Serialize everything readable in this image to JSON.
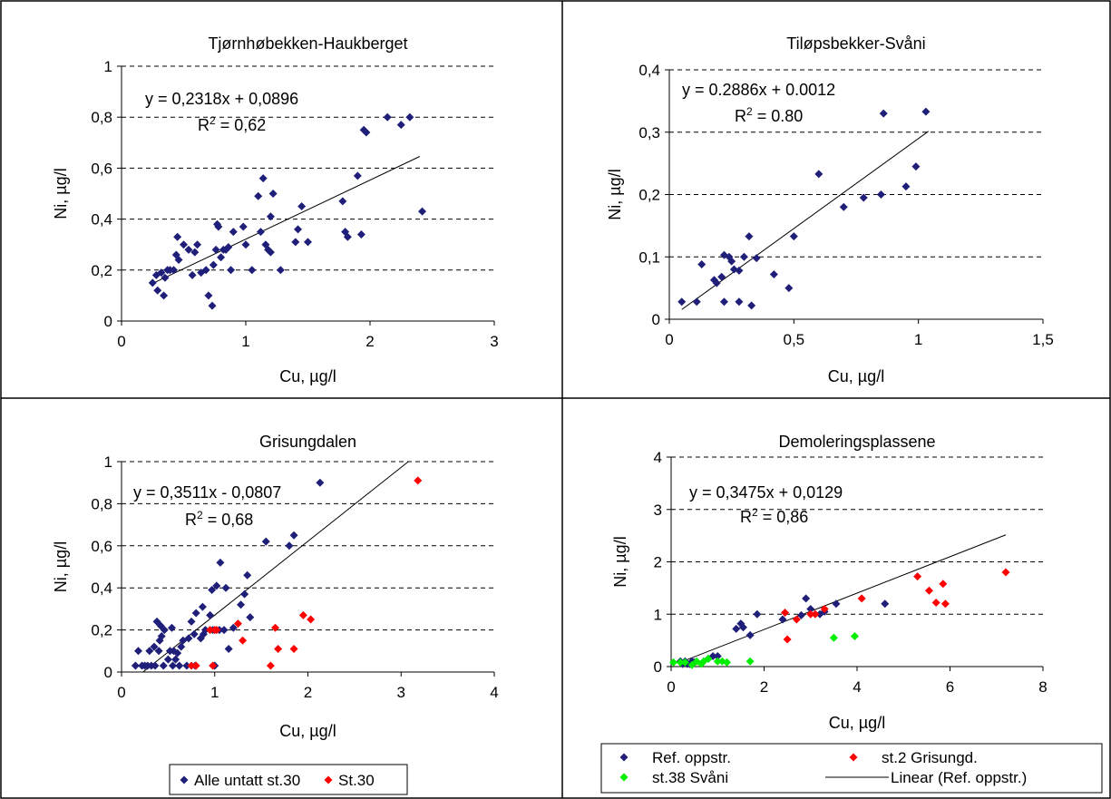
{
  "chart_data": [
    {
      "type": "scatter",
      "title": "Tjørnhøbekken-Haukberget",
      "xlabel": "Cu, µg/l",
      "ylabel": "Ni, µg/l",
      "xlim": [
        0,
        3
      ],
      "ylim": [
        0,
        1
      ],
      "xticks": [
        0,
        1,
        2,
        3
      ],
      "xtick_labels": [
        "0",
        "1",
        "2",
        "3"
      ],
      "yticks": [
        0,
        0.2,
        0.4,
        0.6,
        0.8,
        1
      ],
      "ytick_labels": [
        "0",
        "0,2",
        "0,4",
        "0,6",
        "0,8",
        "1"
      ],
      "grid": "horizontal dashed",
      "equation": "y = 0,2318x + 0,0896",
      "r2": "R2 = 0,62",
      "r2_prefix": "R",
      "r2_sup": "2",
      "r2_value": " = 0,62",
      "trendline": {
        "slope": 0.2318,
        "intercept": 0.0896,
        "x_range": [
          0.24,
          2.4
        ]
      },
      "series": [
        {
          "color": "#1f1f7a",
          "points": [
            [
              0.25,
              0.15
            ],
            [
              0.28,
              0.18
            ],
            [
              0.29,
              0.12
            ],
            [
              0.32,
              0.19
            ],
            [
              0.34,
              0.1
            ],
            [
              0.35,
              0.17
            ],
            [
              0.37,
              0.2
            ],
            [
              0.39,
              0.2
            ],
            [
              0.42,
              0.2
            ],
            [
              0.44,
              0.26
            ],
            [
              0.45,
              0.33
            ],
            [
              0.46,
              0.24
            ],
            [
              0.5,
              0.3
            ],
            [
              0.54,
              0.28
            ],
            [
              0.57,
              0.18
            ],
            [
              0.59,
              0.27
            ],
            [
              0.61,
              0.3
            ],
            [
              0.64,
              0.19
            ],
            [
              0.68,
              0.2
            ],
            [
              0.7,
              0.1
            ],
            [
              0.73,
              0.06
            ],
            [
              0.74,
              0.22
            ],
            [
              0.76,
              0.28
            ],
            [
              0.77,
              0.38
            ],
            [
              0.78,
              0.37
            ],
            [
              0.8,
              0.25
            ],
            [
              0.82,
              0.28
            ],
            [
              0.84,
              0.28
            ],
            [
              0.86,
              0.29
            ],
            [
              0.88,
              0.2
            ],
            [
              0.9,
              0.35
            ],
            [
              0.98,
              0.37
            ],
            [
              1.0,
              0.3
            ],
            [
              1.05,
              0.2
            ],
            [
              1.1,
              0.49
            ],
            [
              1.12,
              0.35
            ],
            [
              1.14,
              0.56
            ],
            [
              1.16,
              0.3
            ],
            [
              1.18,
              0.28
            ],
            [
              1.2,
              0.27
            ],
            [
              1.22,
              0.5
            ],
            [
              1.2,
              0.41
            ],
            [
              1.28,
              0.2
            ],
            [
              1.4,
              0.31
            ],
            [
              1.42,
              0.36
            ],
            [
              1.45,
              0.45
            ],
            [
              1.5,
              0.31
            ],
            [
              1.78,
              0.47
            ],
            [
              1.8,
              0.35
            ],
            [
              1.82,
              0.33
            ],
            [
              1.9,
              0.57
            ],
            [
              1.93,
              0.34
            ],
            [
              1.95,
              0.75
            ],
            [
              1.97,
              0.74
            ],
            [
              2.14,
              0.8
            ],
            [
              2.25,
              0.77
            ],
            [
              2.32,
              0.8
            ],
            [
              2.42,
              0.43
            ]
          ]
        }
      ],
      "legend": []
    },
    {
      "type": "scatter",
      "title": "Tiløpsbekker-Svåni",
      "xlabel": "Cu, µg/l",
      "ylabel": "Ni, µg/l",
      "xlim": [
        0,
        1.5
      ],
      "ylim": [
        0,
        0.4
      ],
      "xticks": [
        0,
        0.5,
        1,
        1.5
      ],
      "xtick_labels": [
        "0",
        "0,5",
        "1",
        "1,5"
      ],
      "yticks": [
        0,
        0.1,
        0.2,
        0.3,
        0.4
      ],
      "ytick_labels": [
        "0",
        "0,1",
        "0,2",
        "0,3",
        "0,4"
      ],
      "grid": "horizontal dashed",
      "equation": "y = 0.2886x + 0.0012",
      "r2": "R2 = 0.80",
      "r2_prefix": "R",
      "r2_sup": "2",
      "r2_value": " = 0.80",
      "trendline": {
        "slope": 0.2886,
        "intercept": 0.0012,
        "x_range": [
          0.05,
          1.04
        ]
      },
      "series": [
        {
          "color": "#1f1f7a",
          "points": [
            [
              0.05,
              0.028
            ],
            [
              0.11,
              0.028
            ],
            [
              0.13,
              0.088
            ],
            [
              0.18,
              0.063
            ],
            [
              0.19,
              0.058
            ],
            [
              0.21,
              0.068
            ],
            [
              0.22,
              0.103
            ],
            [
              0.22,
              0.028
            ],
            [
              0.24,
              0.1
            ],
            [
              0.25,
              0.093
            ],
            [
              0.26,
              0.08
            ],
            [
              0.28,
              0.078
            ],
            [
              0.28,
              0.028
            ],
            [
              0.3,
              0.1
            ],
            [
              0.32,
              0.133
            ],
            [
              0.33,
              0.022
            ],
            [
              0.35,
              0.098
            ],
            [
              0.42,
              0.072
            ],
            [
              0.48,
              0.05
            ],
            [
              0.5,
              0.133
            ],
            [
              0.6,
              0.233
            ],
            [
              0.7,
              0.18
            ],
            [
              0.78,
              0.195
            ],
            [
              0.85,
              0.2
            ],
            [
              0.86,
              0.33
            ],
            [
              0.95,
              0.213
            ],
            [
              0.99,
              0.245
            ],
            [
              1.03,
              0.333
            ]
          ]
        }
      ],
      "legend": []
    },
    {
      "type": "scatter",
      "title": "Grisungdalen",
      "xlabel": "Cu, µg/l",
      "ylabel": "Ni, µg/l",
      "xlim": [
        0,
        4
      ],
      "ylim": [
        0,
        1
      ],
      "xticks": [
        0,
        1,
        2,
        3,
        4
      ],
      "xtick_labels": [
        "0",
        "1",
        "2",
        "3",
        "4"
      ],
      "yticks": [
        0,
        0.2,
        0.4,
        0.6,
        0.8,
        1
      ],
      "ytick_labels": [
        "0",
        "0,2",
        "0,4",
        "0,6",
        "0,8",
        "1"
      ],
      "grid": "horizontal dashed",
      "equation": "y = 0,3511x - 0,0807",
      "r2": "R2 = 0,68",
      "r2_prefix": "R",
      "r2_sup": "2",
      "r2_value": " = 0,68",
      "trendline": {
        "slope": 0.3511,
        "intercept": -0.0807,
        "x_range": [
          0.23,
          3.08
        ]
      },
      "series": [
        {
          "name": "Alle untatt st.30",
          "color": "#1f1f7a",
          "points": [
            [
              0.15,
              0.03
            ],
            [
              0.18,
              0.1
            ],
            [
              0.22,
              0.03
            ],
            [
              0.25,
              0.03
            ],
            [
              0.28,
              0.03
            ],
            [
              0.3,
              0.1
            ],
            [
              0.32,
              0.03
            ],
            [
              0.35,
              0.12
            ],
            [
              0.36,
              0.03
            ],
            [
              0.38,
              0.24
            ],
            [
              0.4,
              0.1
            ],
            [
              0.41,
              0.15
            ],
            [
              0.42,
              0.22
            ],
            [
              0.43,
              0.17
            ],
            [
              0.45,
              0.03
            ],
            [
              0.46,
              0.2
            ],
            [
              0.5,
              0.06
            ],
            [
              0.52,
              0.1
            ],
            [
              0.54,
              0.21
            ],
            [
              0.55,
              0.03
            ],
            [
              0.56,
              0.1
            ],
            [
              0.58,
              0.06
            ],
            [
              0.6,
              0.09
            ],
            [
              0.62,
              0.03
            ],
            [
              0.64,
              0.12
            ],
            [
              0.66,
              0.15
            ],
            [
              0.7,
              0.03
            ],
            [
              0.72,
              0.16
            ],
            [
              0.75,
              0.24
            ],
            [
              0.78,
              0.18
            ],
            [
              0.79,
              0.03
            ],
            [
              0.8,
              0.28
            ],
            [
              0.85,
              0.16
            ],
            [
              0.87,
              0.31
            ],
            [
              0.88,
              0.18
            ],
            [
              0.9,
              0.2
            ],
            [
              0.95,
              0.27
            ],
            [
              0.97,
              0.39
            ],
            [
              0.98,
              0.2
            ],
            [
              1.0,
              0.03
            ],
            [
              1.02,
              0.41
            ],
            [
              1.05,
              0.2
            ],
            [
              1.06,
              0.52
            ],
            [
              1.1,
              0.2
            ],
            [
              1.12,
              0.4
            ],
            [
              1.15,
              0.11
            ],
            [
              1.2,
              0.21
            ],
            [
              1.28,
              0.32
            ],
            [
              1.32,
              0.37
            ],
            [
              1.35,
              0.46
            ],
            [
              1.38,
              0.26
            ],
            [
              1.55,
              0.62
            ],
            [
              1.8,
              0.6
            ],
            [
              1.85,
              0.65
            ],
            [
              2.13,
              0.9
            ]
          ]
        },
        {
          "name": "St.30",
          "color": "#ff0000",
          "points": [
            [
              0.75,
              0.03
            ],
            [
              0.8,
              0.03
            ],
            [
              0.95,
              0.2
            ],
            [
              0.98,
              0.03
            ],
            [
              1.0,
              0.2
            ],
            [
              1.02,
              0.2
            ],
            [
              1.25,
              0.23
            ],
            [
              1.3,
              0.15
            ],
            [
              1.6,
              0.03
            ],
            [
              1.65,
              0.21
            ],
            [
              1.68,
              0.11
            ],
            [
              1.85,
              0.11
            ],
            [
              1.95,
              0.27
            ],
            [
              2.03,
              0.25
            ],
            [
              3.18,
              0.91
            ]
          ]
        }
      ],
      "legend": [
        "Alle untatt st.30",
        "St.30"
      ]
    },
    {
      "type": "scatter",
      "title": "Demoleringsplassene",
      "xlabel": "Cu, µg/l",
      "ylabel": "Ni, µg/l",
      "xlim": [
        0,
        8
      ],
      "ylim": [
        0,
        4
      ],
      "xticks": [
        0,
        2,
        4,
        6,
        8
      ],
      "xtick_labels": [
        "0",
        "2",
        "4",
        "6",
        "8"
      ],
      "yticks": [
        0,
        1,
        2,
        3,
        4
      ],
      "ytick_labels": [
        "0",
        "1",
        "2",
        "3",
        "4"
      ],
      "grid": "horizontal dashed",
      "equation": "y = 0,3475x + 0,0129",
      "r2": "R2 = 0,86",
      "r2_prefix": "R",
      "r2_sup": "2",
      "r2_value": " = 0,86",
      "trendline": {
        "slope": 0.3475,
        "intercept": 0.0129,
        "x_range": [
          0.2,
          7.2
        ]
      },
      "series": [
        {
          "name": "Ref. oppstr.",
          "color": "#1f1f7a",
          "points": [
            [
              0.2,
              0.1
            ],
            [
              0.25,
              0.05
            ],
            [
              0.3,
              0.1
            ],
            [
              0.35,
              0.05
            ],
            [
              0.4,
              0.05
            ],
            [
              0.45,
              0.1
            ],
            [
              0.5,
              0.08
            ],
            [
              0.8,
              0.15
            ],
            [
              0.9,
              0.2
            ],
            [
              1.0,
              0.2
            ],
            [
              1.4,
              0.72
            ],
            [
              1.5,
              0.82
            ],
            [
              1.55,
              0.75
            ],
            [
              1.7,
              0.6
            ],
            [
              1.85,
              1.0
            ],
            [
              2.4,
              0.9
            ],
            [
              2.8,
              0.98
            ],
            [
              2.9,
              1.3
            ],
            [
              3.0,
              1.1
            ],
            [
              3.2,
              1.0
            ],
            [
              3.3,
              1.05
            ],
            [
              3.55,
              1.2
            ],
            [
              4.6,
              1.2
            ]
          ]
        },
        {
          "name": "st.2 Grisungd.",
          "color": "#ff0000",
          "points": [
            [
              2.45,
              1.03
            ],
            [
              2.5,
              0.52
            ],
            [
              2.7,
              0.9
            ],
            [
              3.0,
              1.0
            ],
            [
              3.1,
              1.0
            ],
            [
              3.3,
              1.1
            ],
            [
              4.1,
              1.3
            ],
            [
              5.3,
              1.72
            ],
            [
              5.55,
              1.45
            ],
            [
              5.7,
              1.22
            ],
            [
              5.85,
              1.58
            ],
            [
              5.9,
              1.2
            ],
            [
              7.2,
              1.8
            ]
          ]
        },
        {
          "name": "st.38 Svåni",
          "color": "#00ee00",
          "points": [
            [
              0.05,
              0.08
            ],
            [
              0.2,
              0.08
            ],
            [
              0.3,
              0.08
            ],
            [
              0.45,
              0.03
            ],
            [
              0.55,
              0.1
            ],
            [
              0.65,
              0.05
            ],
            [
              0.7,
              0.1
            ],
            [
              0.8,
              0.15
            ],
            [
              1.0,
              0.1
            ],
            [
              1.1,
              0.1
            ],
            [
              1.2,
              0.08
            ],
            [
              1.7,
              0.1
            ],
            [
              3.5,
              0.55
            ],
            [
              3.95,
              0.58
            ]
          ]
        }
      ],
      "legend": [
        "Ref. oppstr.",
        "st.2 Grisungd.",
        "st.38 Svåni",
        "Linear (Ref. oppstr.)"
      ]
    }
  ]
}
